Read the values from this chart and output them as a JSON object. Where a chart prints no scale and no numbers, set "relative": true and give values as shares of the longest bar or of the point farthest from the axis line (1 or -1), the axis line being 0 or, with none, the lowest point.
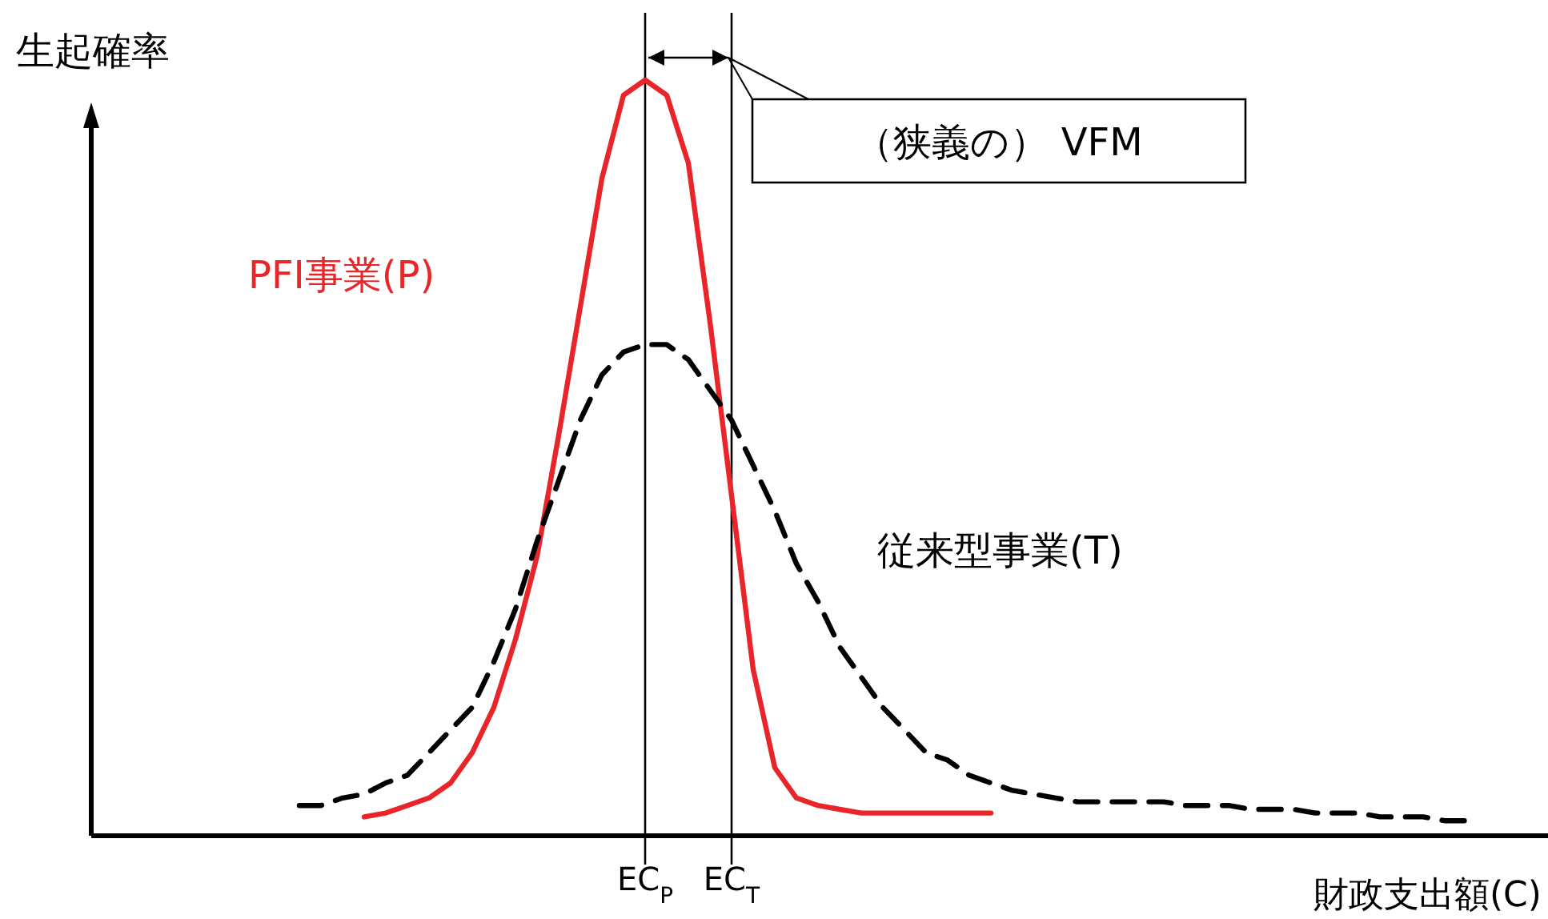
{
  "chart_data": {
    "type": "line",
    "relative": true,
    "xlabel": "財政支出額(C)",
    "ylabel": "生起確率",
    "categories": [
      null,
      null,
      null,
      null,
      null,
      null,
      null,
      null,
      null,
      null,
      null,
      null,
      null,
      null,
      null,
      null,
      "EC$_{P}$",
      null,
      null,
      null,
      "EC$_{T}$",
      null,
      null,
      null,
      null,
      null,
      null,
      null,
      null,
      null,
      null,
      null,
      null,
      null,
      null,
      null,
      null,
      null,
      null,
      null,
      null,
      null,
      null,
      null,
      null,
      null,
      null,
      null,
      null,
      null,
      null,
      null,
      null,
      null,
      null
    ],
    "series": [
      {
        "name": "PFI事業(P)",
        "color": "#e8262a",
        "line_style": "solid",
        "values": [
          null,
          null,
          null,
          0.025,
          0.03,
          0.04,
          0.05,
          0.07,
          0.11,
          0.17,
          0.26,
          0.37,
          0.53,
          0.7,
          0.87,
          0.98,
          1,
          0.98,
          0.89,
          0.68,
          0.45,
          0.22,
          0.09,
          0.05,
          0.04,
          0.035,
          0.03,
          0.03,
          0.03,
          0.03,
          0.03,
          0.03,
          0.03,
          null,
          null,
          null,
          null,
          null,
          null,
          null,
          null,
          null,
          null,
          null,
          null,
          null,
          null,
          null,
          null,
          null,
          null,
          null,
          null,
          null,
          null
        ]
      },
      {
        "name": "従来型事業(T)",
        "color": "#000000",
        "line_style": "dashed",
        "values": [
          0.04,
          0.04,
          0.05,
          0.055,
          0.07,
          0.08,
          0.11,
          0.14,
          0.17,
          0.23,
          0.3,
          0.39,
          0.47,
          0.55,
          0.61,
          0.64,
          0.65,
          0.65,
          0.63,
          0.59,
          0.55,
          0.49,
          0.43,
          0.36,
          0.31,
          0.25,
          0.21,
          0.17,
          0.14,
          0.11,
          0.1,
          0.08,
          0.07,
          0.06,
          0.055,
          0.05,
          0.045,
          0.045,
          0.045,
          0.045,
          0.045,
          0.04,
          0.04,
          0.04,
          0.035,
          0.035,
          0.035,
          0.03,
          0.03,
          0.03,
          0.025,
          0.025,
          0.025,
          0.02,
          0.02
        ]
      }
    ],
    "ref_lines": [
      {
        "axis": "x",
        "value": "EC$_{P}$",
        "color": "#000000"
      },
      {
        "axis": "x",
        "value": "EC$_{T}$",
        "color": "#000000"
      }
    ],
    "annotations": [
      "（狭義の） VFM"
    ],
    "legend": false,
    "grid": false
  }
}
